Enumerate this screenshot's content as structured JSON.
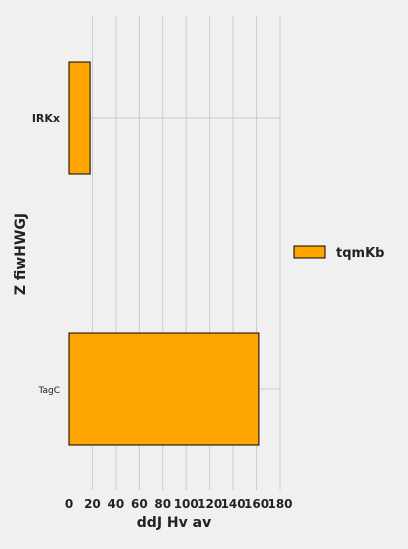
{
  "chart_data": {
    "type": "bar",
    "orientation": "horizontal",
    "categories": [
      "IRKx",
      "TagC"
    ],
    "series": [
      {
        "name": "tqmKb",
        "values": [
          18,
          162
        ],
        "color": "#ffa500"
      }
    ],
    "xlabel": "ddJ Hv av",
    "ylabel": "Z fiwHWGJ",
    "xlim": [
      0,
      180
    ],
    "xticks": [
      0,
      20,
      40,
      60,
      80,
      100,
      120,
      140,
      160,
      180
    ],
    "grid": true,
    "legend_position": "right",
    "background": "#f0f0f0",
    "bar_edge_color": "#000000"
  }
}
